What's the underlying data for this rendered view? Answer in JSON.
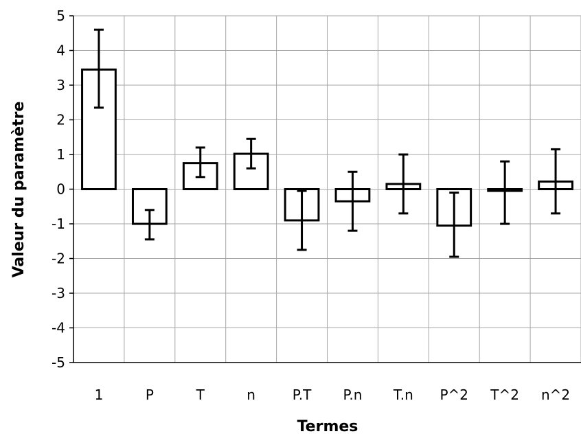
{
  "chart_data": {
    "type": "bar",
    "title": "",
    "xlabel": "Termes",
    "ylabel": "Valeur du paramètre",
    "categories": [
      "1",
      "P",
      "T",
      "n",
      "P.T",
      "P.n",
      "T.n",
      "P^2",
      "T^2",
      "n^2"
    ],
    "values": [
      3.45,
      -1.0,
      0.75,
      1.02,
      -0.9,
      -0.35,
      0.15,
      -1.05,
      -0.05,
      0.22
    ],
    "error_low": [
      2.35,
      -1.45,
      0.35,
      0.6,
      -1.75,
      -1.2,
      -0.7,
      -1.95,
      -1.0,
      -0.7
    ],
    "error_high": [
      4.6,
      -0.6,
      1.2,
      1.45,
      -0.05,
      0.5,
      1.0,
      -0.1,
      0.8,
      1.15
    ],
    "ylim": [
      -5,
      5
    ],
    "yticks": [
      "-5",
      "-4",
      "-3",
      "-2",
      "-1",
      "0",
      "1",
      "2",
      "3",
      "4",
      "5"
    ],
    "grid": true,
    "legend": "none",
    "colors": {
      "bar_fill": "#ffffff",
      "bar_stroke": "#000000",
      "grid": "#a6a6a6",
      "axis": "#000000"
    }
  }
}
